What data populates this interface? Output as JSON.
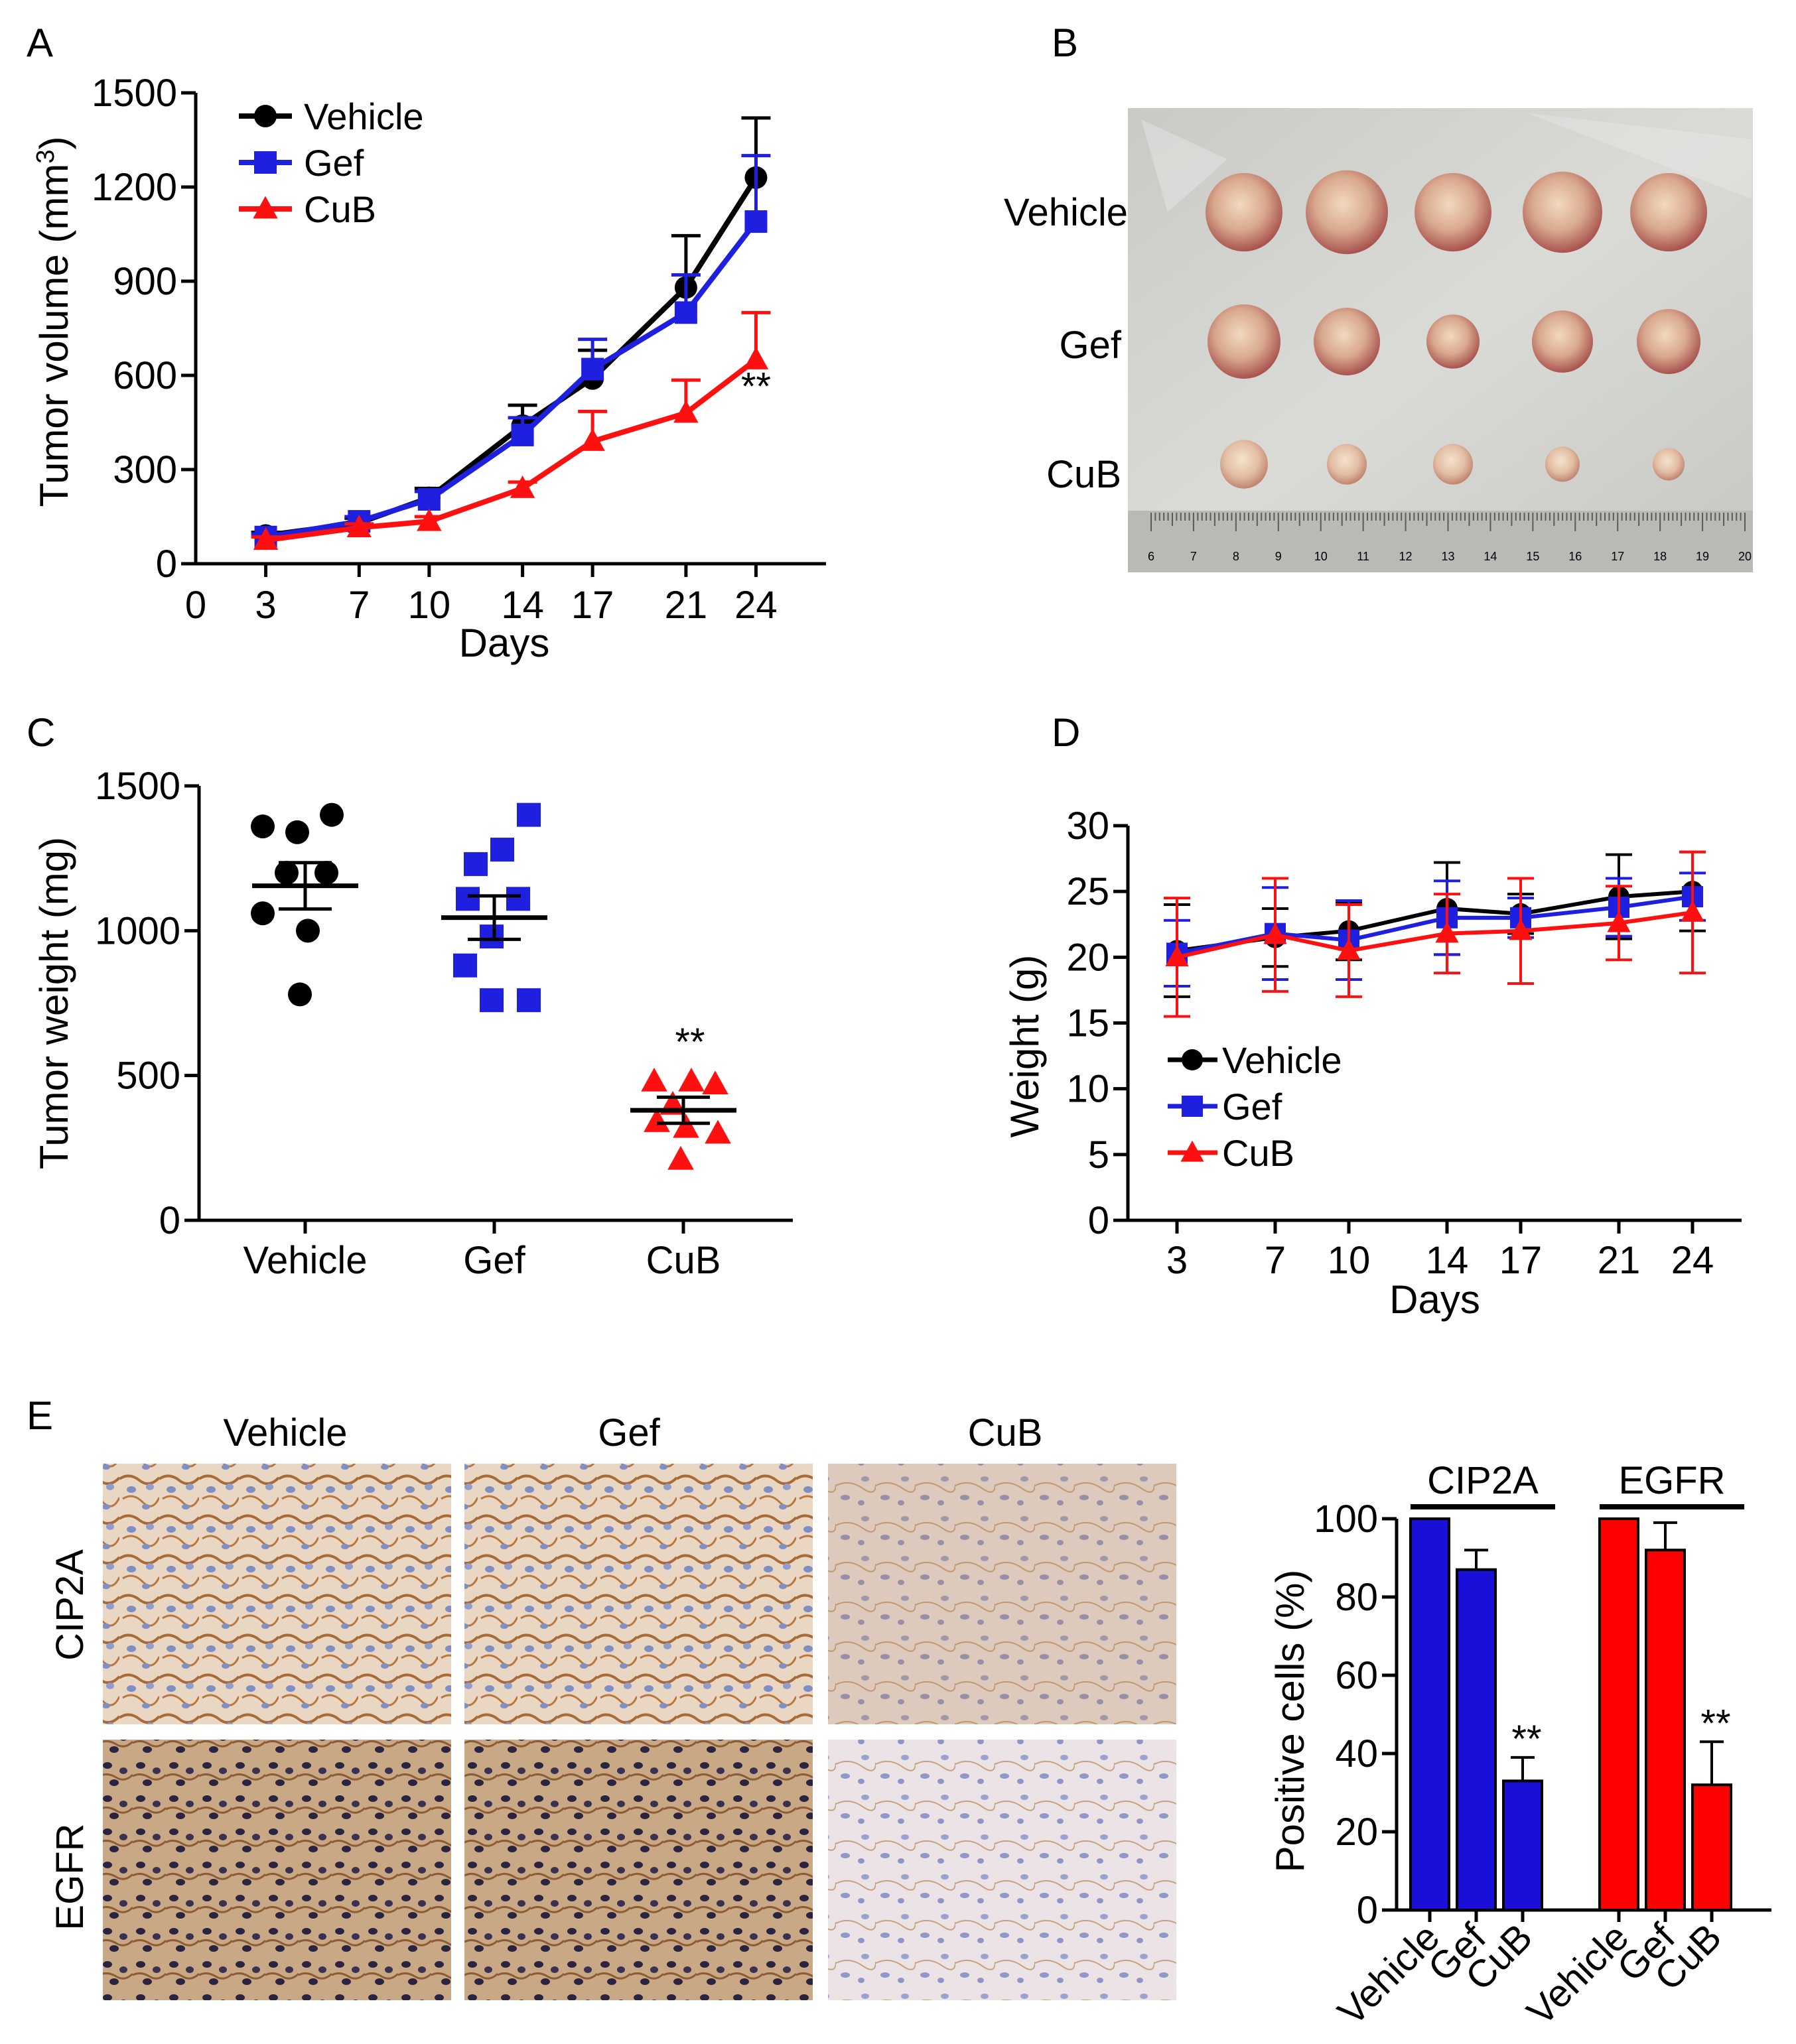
{
  "panel_letters": {
    "a": "A",
    "b": "B",
    "c": "C",
    "d": "D",
    "e": "E"
  },
  "colors": {
    "vehicle": "#000000",
    "gef": "#1f1fe0",
    "cub": "#ff1010",
    "bar_cip2a": "#1a0fd6",
    "bar_egfr": "#ff0000"
  },
  "chart_data": [
    {
      "id": "A",
      "type": "line",
      "title": "",
      "xlabel": "Days",
      "ylabel_prefix": "Tumor volume (mm",
      "ylabel_sup": "3",
      "ylabel_suffix": ")",
      "x": [
        3,
        7,
        10,
        14,
        17,
        21,
        24
      ],
      "x_ticks": [
        "0",
        "3",
        "7",
        "10",
        "14",
        "17",
        "21",
        "24"
      ],
      "x_tick_values": [
        0,
        3,
        7,
        10,
        14,
        17,
        21,
        24
      ],
      "xlim": [
        0,
        27
      ],
      "ylim": [
        0,
        1500
      ],
      "y_ticks": [
        "0",
        "300",
        "600",
        "900",
        "1200",
        "1500"
      ],
      "y_tick_values": [
        0,
        300,
        600,
        900,
        1200,
        1500
      ],
      "legend": [
        "Vehicle",
        "Gef",
        "CuB"
      ],
      "legend_position": "top-left",
      "series": [
        {
          "name": "Vehicle",
          "color": "#000000",
          "marker": "circle",
          "values": [
            90,
            130,
            210,
            440,
            590,
            880,
            1230
          ],
          "errors": [
            10,
            15,
            30,
            65,
            90,
            165,
            190
          ]
        },
        {
          "name": "Gef",
          "color": "#1f1fe0",
          "marker": "square",
          "values": [
            85,
            135,
            205,
            410,
            620,
            800,
            1090
          ],
          "errors": [
            10,
            15,
            25,
            55,
            95,
            120,
            210
          ]
        },
        {
          "name": "CuB",
          "color": "#ff1010",
          "marker": "triangle",
          "values": [
            75,
            115,
            135,
            240,
            390,
            480,
            650
          ],
          "errors": [
            10,
            12,
            15,
            20,
            95,
            105,
            150
          ]
        }
      ],
      "annotation": "**"
    },
    {
      "id": "C",
      "type": "scatter",
      "ylabel": "Tumor weight (mg)",
      "categories": [
        "Vehicle",
        "Gef",
        "CuB"
      ],
      "ylim": [
        0,
        1500
      ],
      "y_ticks": [
        "0",
        "500",
        "1000",
        "1500"
      ],
      "y_tick_values": [
        0,
        500,
        1000,
        1500
      ],
      "groups": [
        {
          "name": "Vehicle",
          "color": "#000000",
          "marker": "circle",
          "points": [
            1360,
            1340,
            1400,
            1200,
            1200,
            1060,
            1000,
            780
          ],
          "jitter": [
            -0.32,
            -0.06,
            0.2,
            -0.14,
            0.16,
            -0.32,
            0.02,
            -0.04
          ],
          "mean": 1155,
          "sem": 80
        },
        {
          "name": "Gef",
          "color": "#1f1fe0",
          "marker": "square",
          "points": [
            1400,
            1280,
            1230,
            1110,
            1110,
            980,
            880,
            760,
            760
          ],
          "jitter": [
            0.26,
            0.06,
            -0.14,
            -0.2,
            0.18,
            -0.02,
            -0.22,
            -0.02,
            0.26
          ],
          "mean": 1045,
          "sem": 75
        },
        {
          "name": "CuB",
          "color": "#ff1010",
          "marker": "triangle",
          "points": [
            480,
            480,
            470,
            400,
            340,
            320,
            300,
            210
          ],
          "jitter": [
            -0.22,
            0.06,
            0.24,
            -0.08,
            -0.2,
            0.02,
            0.26,
            -0.02
          ],
          "mean": 380,
          "sem": 45
        }
      ],
      "annotation": "**"
    },
    {
      "id": "D",
      "type": "line",
      "xlabel": "Days",
      "ylabel": "Weight (g)",
      "x": [
        3,
        7,
        10,
        14,
        17,
        21,
        24
      ],
      "x_ticks": [
        "3",
        "7",
        "10",
        "14",
        "17",
        "21",
        "24"
      ],
      "xlim": [
        1,
        26
      ],
      "ylim": [
        0,
        30
      ],
      "y_ticks": [
        "0",
        "5",
        "10",
        "15",
        "20",
        "25",
        "30"
      ],
      "y_tick_values": [
        0,
        5,
        10,
        15,
        20,
        25,
        30
      ],
      "legend": [
        "Vehicle",
        "Gef",
        "CuB"
      ],
      "legend_position": "bottom-left",
      "series": [
        {
          "name": "Vehicle",
          "color": "#000000",
          "marker": "circle",
          "values": [
            20.5,
            21.5,
            22.0,
            23.7,
            23.3,
            24.6,
            25.0
          ],
          "errors": [
            3.5,
            2.2,
            2.2,
            3.5,
            1.5,
            3.2,
            3.0
          ]
        },
        {
          "name": "Gef",
          "color": "#1f1fe0",
          "marker": "square",
          "values": [
            20.3,
            21.8,
            21.3,
            23.0,
            23.0,
            23.8,
            24.6
          ],
          "errors": [
            2.5,
            3.5,
            3.0,
            2.8,
            1.5,
            2.2,
            1.8
          ]
        },
        {
          "name": "CuB",
          "color": "#ff1010",
          "marker": "triangle",
          "values": [
            20.0,
            21.7,
            20.5,
            21.8,
            22.0,
            22.6,
            23.4
          ],
          "errors": [
            4.5,
            4.3,
            3.5,
            3.0,
            4.0,
            2.8,
            4.6
          ]
        }
      ]
    },
    {
      "id": "E-bar",
      "type": "bar",
      "ylabel": "Positive cells (%)",
      "ylim": [
        0,
        100
      ],
      "y_ticks": [
        "0",
        "20",
        "40",
        "60",
        "80",
        "100"
      ],
      "y_tick_values": [
        0,
        20,
        40,
        60,
        80,
        100
      ],
      "categories": [
        "Vehicle",
        "Gef",
        "CuB",
        "Vehicle",
        "Gef",
        "CuB"
      ],
      "groups": [
        {
          "name": "CIP2A",
          "color": "#1a0fd6",
          "values": [
            100,
            87,
            33
          ],
          "errors": [
            0,
            5,
            6
          ],
          "annotation": "**"
        },
        {
          "name": "EGFR",
          "color": "#ff0000",
          "values": [
            100,
            92,
            32
          ],
          "errors": [
            0,
            7,
            11
          ],
          "annotation": "**"
        }
      ]
    }
  ],
  "panel_b": {
    "rows": [
      "Vehicle",
      "Gef",
      "CuB"
    ],
    "ruler_labels": [
      "6",
      "7",
      "8",
      "9",
      "10",
      "11",
      "12",
      "13",
      "14",
      "15",
      "16",
      "17",
      "18",
      "19",
      "20"
    ]
  },
  "panel_e": {
    "columns": [
      "Vehicle",
      "Gef",
      "CuB"
    ],
    "rows": [
      "CIP2A",
      "EGFR"
    ]
  }
}
